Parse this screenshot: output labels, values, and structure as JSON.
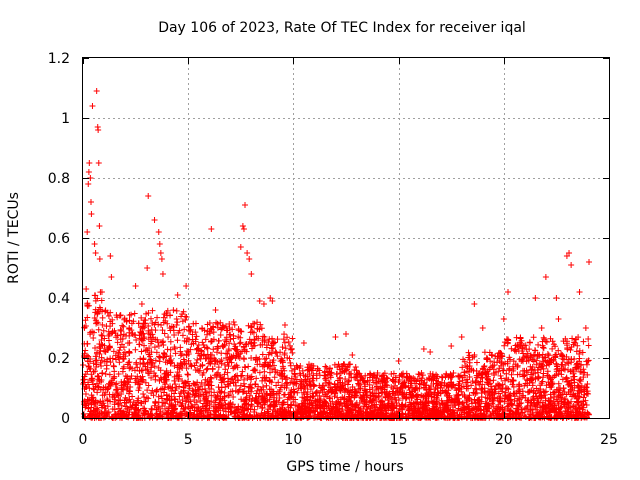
{
  "chart_data": {
    "type": "scatter",
    "title": "Day 106 of 2023, Rate Of TEC Index for receiver iqal",
    "xlabel": "GPS time / hours",
    "ylabel": "ROTI / TECUs",
    "xlim": [
      0,
      25
    ],
    "ylim": [
      0,
      1.2
    ],
    "x_ticks": [
      "0",
      "5",
      "10",
      "15",
      "20",
      "25"
    ],
    "y_ticks": [
      "0",
      "0.2",
      "0.4",
      "0.6",
      "0.8",
      "1",
      "1.2"
    ],
    "grid": true,
    "marker": "plus",
    "color": "#ff0000",
    "series": [
      {
        "points": [
          [
            0.15,
            0.43
          ],
          [
            0.2,
            0.62
          ],
          [
            0.25,
            0.78
          ],
          [
            0.28,
            0.82
          ],
          [
            0.3,
            0.85
          ],
          [
            0.35,
            0.8
          ],
          [
            0.38,
            0.72
          ],
          [
            0.4,
            0.68
          ],
          [
            0.45,
            1.04
          ],
          [
            0.55,
            0.58
          ],
          [
            0.6,
            0.55
          ],
          [
            0.65,
            1.09
          ],
          [
            0.7,
            0.97
          ],
          [
            0.72,
            0.96
          ],
          [
            0.75,
            0.85
          ],
          [
            0.78,
            0.64
          ],
          [
            0.8,
            0.53
          ],
          [
            0.9,
            0.42
          ],
          [
            1.3,
            0.54
          ],
          [
            1.35,
            0.47
          ],
          [
            2.5,
            0.44
          ],
          [
            2.8,
            0.38
          ],
          [
            3.05,
            0.5
          ],
          [
            3.1,
            0.74
          ],
          [
            3.4,
            0.66
          ],
          [
            3.6,
            0.62
          ],
          [
            3.65,
            0.58
          ],
          [
            3.7,
            0.55
          ],
          [
            3.75,
            0.53
          ],
          [
            3.8,
            0.48
          ],
          [
            4.5,
            0.41
          ],
          [
            4.9,
            0.44
          ],
          [
            6.1,
            0.63
          ],
          [
            6.3,
            0.36
          ],
          [
            7.5,
            0.57
          ],
          [
            7.6,
            0.64
          ],
          [
            7.65,
            0.63
          ],
          [
            7.7,
            0.71
          ],
          [
            7.8,
            0.55
          ],
          [
            7.9,
            0.53
          ],
          [
            8.0,
            0.48
          ],
          [
            8.4,
            0.39
          ],
          [
            8.6,
            0.38
          ],
          [
            8.9,
            0.4
          ],
          [
            9.0,
            0.39
          ],
          [
            9.6,
            0.31
          ],
          [
            10.5,
            0.25
          ],
          [
            12.0,
            0.27
          ],
          [
            12.5,
            0.28
          ],
          [
            12.8,
            0.21
          ],
          [
            14.0,
            0.15
          ],
          [
            15.0,
            0.19
          ],
          [
            16.2,
            0.23
          ],
          [
            16.5,
            0.22
          ],
          [
            17.5,
            0.24
          ],
          [
            18.0,
            0.27
          ],
          [
            18.6,
            0.38
          ],
          [
            19.0,
            0.3
          ],
          [
            20.0,
            0.33
          ],
          [
            20.2,
            0.42
          ],
          [
            21.5,
            0.4
          ],
          [
            21.8,
            0.3
          ],
          [
            22.0,
            0.47
          ],
          [
            22.5,
            0.4
          ],
          [
            22.6,
            0.33
          ],
          [
            23.0,
            0.54
          ],
          [
            23.1,
            0.55
          ],
          [
            23.2,
            0.51
          ],
          [
            23.6,
            0.42
          ],
          [
            23.9,
            0.3
          ],
          [
            24.05,
            0.52
          ]
        ]
      }
    ]
  }
}
